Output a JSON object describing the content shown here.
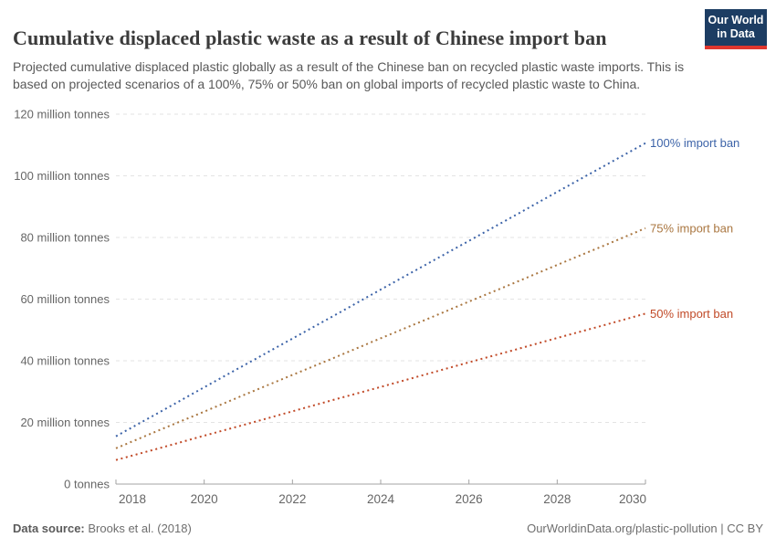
{
  "header": {
    "title": "Cumulative displaced plastic waste as a result of Chinese import ban",
    "subtitle": "Projected cumulative displaced plastic globally as a result of the Chinese ban on recycled plastic waste imports. This is based on projected scenarios of a 100%, 75% or 50% ban on global imports of recycled plastic waste to China.",
    "logo": {
      "line1": "Our World",
      "line2": "in Data",
      "bg_color": "#1d3d63",
      "stripe_color": "#e0362e"
    }
  },
  "chart_data": {
    "type": "line",
    "title": "Cumulative displaced plastic waste as a result of Chinese import ban",
    "xlabel": "",
    "ylabel": "",
    "x": [
      2018,
      2019,
      2020,
      2021,
      2022,
      2023,
      2024,
      2025,
      2026,
      2027,
      2028,
      2029,
      2030
    ],
    "series": [
      {
        "name": "100% import ban",
        "color": "#3c63a8",
        "line_style": "dotted",
        "values": [
          15.5,
          23.4,
          31.4,
          39.3,
          47.2,
          55.1,
          63.1,
          71.0,
          78.9,
          86.8,
          94.8,
          102.7,
          110.6
        ]
      },
      {
        "name": "75% import ban",
        "color": "#aa7741",
        "line_style": "dotted",
        "values": [
          11.6,
          17.6,
          23.5,
          29.5,
          35.4,
          41.3,
          47.3,
          53.2,
          59.2,
          65.1,
          71.1,
          77.0,
          83.0
        ]
      },
      {
        "name": "50% import ban",
        "color": "#c14a28",
        "line_style": "dotted",
        "values": [
          7.8,
          11.7,
          15.7,
          19.6,
          23.6,
          27.6,
          31.5,
          35.5,
          39.5,
          43.4,
          47.4,
          51.3,
          55.3
        ]
      }
    ],
    "units": "million tonnes",
    "xlim": [
      2018,
      2030
    ],
    "ylim": [
      0,
      120
    ],
    "x_ticks": [
      2018,
      2020,
      2022,
      2024,
      2026,
      2028,
      2030
    ],
    "y_ticks": [
      0,
      20,
      40,
      60,
      80,
      100,
      120
    ],
    "y_tick_labels": [
      "0 tonnes",
      "20 million tonnes",
      "40 million tonnes",
      "60 million tonnes",
      "80 million tonnes",
      "100 million tonnes",
      "120 million tonnes"
    ],
    "grid": "horizontal-dashed",
    "legend_position": "right-end-labels",
    "axis_text_color": "#666666",
    "gridline_color": "#e3e3e3",
    "axis_line_color": "#a3a3a3"
  },
  "footer": {
    "source_label": "Data source:",
    "source_value": "Brooks et al. (2018)",
    "credit": "OurWorldinData.org/plastic-pollution | CC BY"
  }
}
